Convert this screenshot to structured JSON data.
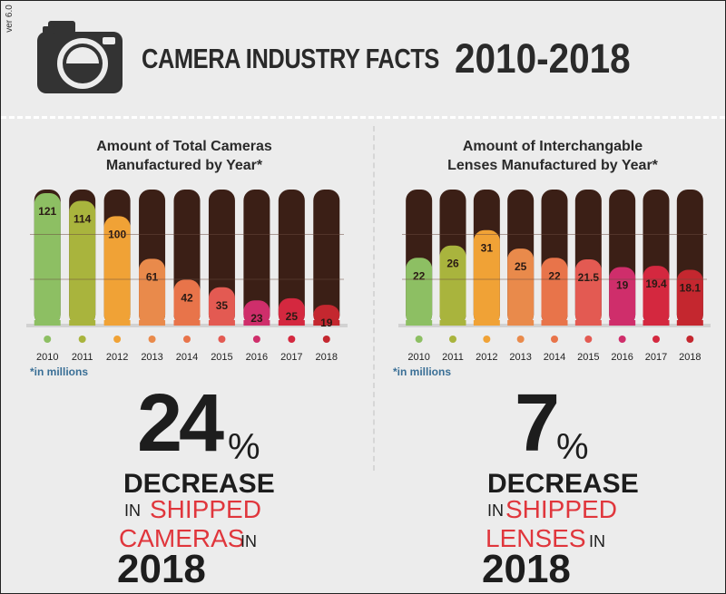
{
  "header": {
    "version": "ver 6.0",
    "title": "CAMERA INDUSTRY FACTS",
    "years": "2010-2018"
  },
  "chart_data": [
    {
      "type": "bar",
      "title": "Amount of Total Cameras Manufactured by Year*",
      "title_line1": "Amount of Total Cameras",
      "title_line2": "Manufactured by Year*",
      "note": "*in millions",
      "categories": [
        "2010",
        "2011",
        "2012",
        "2013",
        "2014",
        "2015",
        "2016",
        "2017",
        "2018"
      ],
      "values": [
        121,
        114,
        100,
        61,
        42,
        35,
        23,
        25,
        19
      ],
      "labels": [
        "121",
        "114",
        "100",
        "61",
        "42",
        "35",
        "23",
        "25",
        "19"
      ],
      "colors": [
        "#8dbf63",
        "#a9b43d",
        "#f0a236",
        "#e98a4b",
        "#e8744a",
        "#e35a52",
        "#cf2e6b",
        "#d4283f",
        "#c4272f"
      ],
      "ylim": [
        0,
        121
      ]
    },
    {
      "type": "bar",
      "title": "Amount of Interchangable Lenses Manufactured by Year*",
      "title_line1": "Amount of Interchangable",
      "title_line2": "Lenses Manufactured by Year*",
      "note": "*in millions",
      "categories": [
        "2010",
        "2011",
        "2012",
        "2013",
        "2014",
        "2015",
        "2016",
        "2017",
        "2018"
      ],
      "values": [
        22,
        26,
        31,
        25,
        22,
        21.5,
        19,
        19.4,
        18.1
      ],
      "labels": [
        "22",
        "26",
        "31",
        "25",
        "22",
        "21.5",
        "19",
        "19.4",
        "18.1"
      ],
      "colors": [
        "#8dbf63",
        "#a9b43d",
        "#f0a236",
        "#e98a4b",
        "#e8744a",
        "#e35a52",
        "#cf2e6b",
        "#d4283f",
        "#c4272f"
      ],
      "ylim": [
        0,
        43
      ]
    }
  ],
  "stats": {
    "left": {
      "number": "24",
      "percent": "%",
      "decrease": "DECREASE",
      "in": "IN",
      "shipped": "SHIPPED",
      "item": "CAMERAS",
      "in2": "IN",
      "year": "2018"
    },
    "right": {
      "number": "7",
      "percent": "%",
      "decrease": "DECREASE",
      "in": "IN",
      "shipped": "SHIPPED",
      "item": "LENSES",
      "in2": "IN",
      "year": "2018"
    }
  }
}
